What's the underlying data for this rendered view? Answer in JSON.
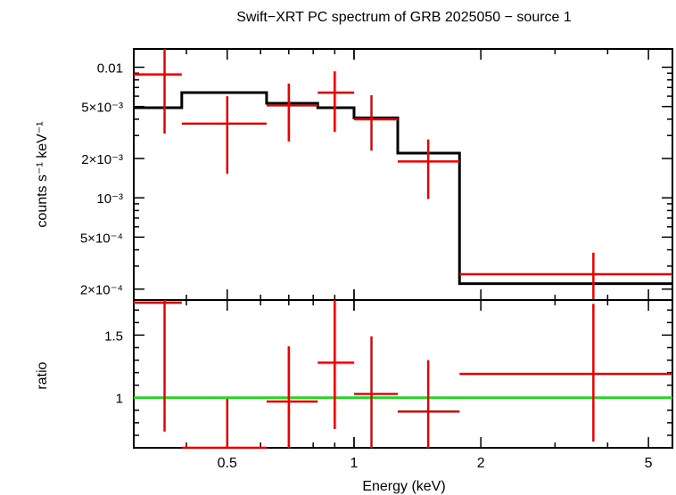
{
  "chart_data": [
    {
      "type": "line",
      "panel": "spectrum",
      "title": "Swift−XRT PC spectrum of GRB 2025050 − source 1",
      "xlabel": "Energy (keV)",
      "ylabel": "counts s⁻¹ keV⁻¹",
      "xscale": "log",
      "yscale": "log",
      "xlim": [
        0.3,
        5.7
      ],
      "ylim": [
        0.000165,
        0.0138
      ],
      "yticks": [
        {
          "value": 0.01,
          "label": "0.01"
        },
        {
          "value": 0.005,
          "label": "5×10⁻³"
        },
        {
          "value": 0.002,
          "label": "2×10⁻³"
        },
        {
          "value": 0.001,
          "label": "10⁻³"
        },
        {
          "value": 0.0005,
          "label": "5×10⁻⁴"
        },
        {
          "value": 0.0002,
          "label": "2×10⁻⁴"
        }
      ],
      "data_color": "#ee0000",
      "model_color": "#000000",
      "data": [
        {
          "x": 0.355,
          "xlo": 0.3,
          "xhi": 0.39,
          "y": 0.0088,
          "ylo": 0.0031,
          "yhi": 0.0145
        },
        {
          "x": 0.5,
          "xlo": 0.39,
          "xhi": 0.62,
          "y": 0.0037,
          "ylo": 0.00153,
          "yhi": 0.006
        },
        {
          "x": 0.7,
          "xlo": 0.62,
          "xhi": 0.82,
          "y": 0.0051,
          "ylo": 0.0027,
          "yhi": 0.0075
        },
        {
          "x": 0.9,
          "xlo": 0.82,
          "xhi": 1.0,
          "y": 0.0064,
          "ylo": 0.0032,
          "yhi": 0.0093
        },
        {
          "x": 1.1,
          "xlo": 1.0,
          "xhi": 1.27,
          "y": 0.004,
          "ylo": 0.0023,
          "yhi": 0.0061
        },
        {
          "x": 1.5,
          "xlo": 1.27,
          "xhi": 1.78,
          "y": 0.0019,
          "ylo": 0.00098,
          "yhi": 0.0028
        },
        {
          "x": 3.7,
          "xlo": 1.78,
          "xhi": 5.7,
          "y": 0.00026,
          "ylo": 0.000165,
          "yhi": 0.00038
        }
      ],
      "model": [
        {
          "xlo": 0.3,
          "xhi": 0.39,
          "y": 0.0049
        },
        {
          "xlo": 0.39,
          "xhi": 0.62,
          "y": 0.0064
        },
        {
          "xlo": 0.62,
          "xhi": 0.82,
          "y": 0.0053
        },
        {
          "xlo": 0.82,
          "xhi": 1.0,
          "y": 0.0049
        },
        {
          "xlo": 1.0,
          "xhi": 1.27,
          "y": 0.0041
        },
        {
          "xlo": 1.27,
          "xhi": 1.78,
          "y": 0.0022
        },
        {
          "xlo": 1.78,
          "xhi": 5.7,
          "y": 0.00022
        }
      ]
    },
    {
      "type": "scatter",
      "panel": "ratio",
      "xlabel": "Energy (keV)",
      "ylabel": "ratio",
      "xscale": "log",
      "yscale": "linear",
      "xlim": [
        0.3,
        5.7
      ],
      "ylim": [
        0.6,
        1.78
      ],
      "xticks": [
        {
          "value": 0.5,
          "label": "0.5"
        },
        {
          "value": 1,
          "label": "1"
        },
        {
          "value": 2,
          "label": "2"
        },
        {
          "value": 5,
          "label": "5"
        }
      ],
      "yticks": [
        {
          "value": 1.5,
          "label": "1.5"
        },
        {
          "value": 1,
          "label": "1"
        }
      ],
      "reference_line": {
        "y": 1,
        "color": "#00ee00"
      },
      "data_color": "#ee0000",
      "data": [
        {
          "x": 0.355,
          "xlo": 0.3,
          "xhi": 0.39,
          "y": 1.76,
          "ylo": 0.73,
          "yhi": 1.78
        },
        {
          "x": 0.5,
          "xlo": 0.39,
          "xhi": 0.62,
          "y": 0.6,
          "ylo": 0.6,
          "yhi": 0.99
        },
        {
          "x": 0.7,
          "xlo": 0.62,
          "xhi": 0.82,
          "y": 0.97,
          "ylo": 0.6,
          "yhi": 1.41
        },
        {
          "x": 0.9,
          "xlo": 0.82,
          "xhi": 1.0,
          "y": 1.28,
          "ylo": 0.75,
          "yhi": 1.78
        },
        {
          "x": 1.1,
          "xlo": 1.0,
          "xhi": 1.27,
          "y": 1.03,
          "ylo": 0.6,
          "yhi": 1.49
        },
        {
          "x": 1.5,
          "xlo": 1.27,
          "xhi": 1.78,
          "y": 0.89,
          "ylo": 0.6,
          "yhi": 1.3
        },
        {
          "x": 3.7,
          "xlo": 1.78,
          "xhi": 5.7,
          "y": 1.19,
          "ylo": 0.65,
          "yhi": 1.75
        }
      ]
    }
  ]
}
